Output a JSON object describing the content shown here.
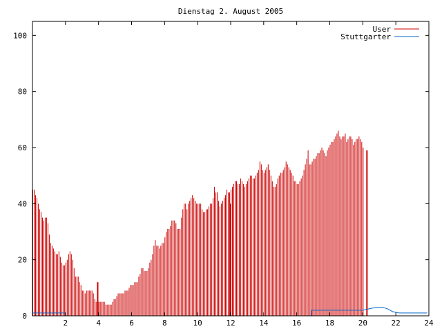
{
  "chart_data": {
    "type": "bar",
    "title": "Dienstag 2. August 2005",
    "xlabel": "",
    "ylabel": "",
    "xlim": [
      0,
      24
    ],
    "ylim": [
      0,
      105
    ],
    "x_ticks": [
      2,
      4,
      6,
      8,
      10,
      12,
      14,
      16,
      18,
      20,
      22,
      24
    ],
    "x_tick_labels": [
      "2",
      "4",
      "6",
      "8",
      "10",
      "12",
      "14",
      "16",
      "18",
      "20",
      "22",
      "24"
    ],
    "y_ticks": [
      0,
      20,
      40,
      60,
      80,
      100
    ],
    "y_tick_labels": [
      "0",
      "20",
      "40",
      "60",
      "80",
      "100"
    ],
    "grid": false,
    "legend_position": "top-right",
    "bar_step_hours": 0.083333,
    "series": [
      {
        "name": "User",
        "style": "impulses",
        "color": "#cc0000",
        "values": [
          45,
          45,
          43,
          42,
          40,
          38,
          37,
          35,
          34,
          35,
          35,
          33,
          29,
          26,
          25,
          24,
          23,
          22,
          22,
          23,
          21,
          19,
          18,
          18,
          19,
          20,
          22,
          23,
          22,
          20,
          17,
          14,
          14,
          14,
          12,
          11,
          9,
          9,
          8,
          9,
          9,
          9,
          9,
          9,
          8,
          6,
          5,
          5,
          5,
          5,
          5,
          5,
          5,
          4,
          4,
          4,
          4,
          4,
          5,
          6,
          6,
          7,
          8,
          8,
          8,
          8,
          8,
          9,
          9,
          9,
          10,
          11,
          11,
          11,
          12,
          12,
          12,
          14,
          15,
          17,
          17,
          16,
          16,
          16,
          17,
          19,
          20,
          22,
          25,
          27,
          25,
          25,
          24,
          25,
          26,
          26,
          28,
          30,
          31,
          31,
          32,
          34,
          34,
          34,
          33,
          31,
          31,
          31,
          35,
          38,
          40,
          40,
          38,
          40,
          41,
          42,
          43,
          42,
          41,
          40,
          40,
          40,
          40,
          38,
          37,
          37,
          38,
          38,
          39,
          40,
          40,
          42,
          46,
          44,
          44,
          41,
          39,
          40,
          41,
          42,
          43,
          45,
          44,
          44,
          45,
          46,
          47,
          48,
          48,
          47,
          47,
          49,
          48,
          47,
          46,
          47,
          48,
          49,
          50,
          50,
          49,
          49,
          50,
          51,
          52,
          55,
          54,
          52,
          51,
          52,
          53,
          54,
          52,
          50,
          48,
          46,
          46,
          47,
          49,
          50,
          51,
          51,
          52,
          53,
          55,
          54,
          53,
          52,
          51,
          50,
          48,
          48,
          47,
          47,
          48,
          49,
          50,
          52,
          54,
          56,
          59,
          54,
          54,
          55,
          56,
          56,
          57,
          58,
          58,
          59,
          60,
          59,
          58,
          57,
          59,
          60,
          61,
          62,
          62,
          63,
          64,
          65,
          66,
          64,
          63,
          64,
          64,
          65,
          62,
          63,
          64,
          64,
          63,
          61,
          62,
          63,
          63,
          64,
          63,
          62,
          60
        ]
      },
      {
        "name": "Stuttgarter",
        "style": "line",
        "color": "#0066cc",
        "x": [
          0,
          2,
          2.01,
          16.9,
          16.91,
          20.0,
          20.4,
          20.8,
          21.2,
          21.5,
          21.8,
          22.2,
          23.9
        ],
        "values": [
          1,
          1,
          0,
          0,
          2,
          2,
          2.5,
          3,
          3,
          2.5,
          1.5,
          1,
          1
        ]
      }
    ],
    "highlight_bars": [
      {
        "x": 3.95,
        "value": 12
      },
      {
        "x": 12.0,
        "value": 40
      },
      {
        "x": 20.25,
        "value": 59
      }
    ]
  }
}
